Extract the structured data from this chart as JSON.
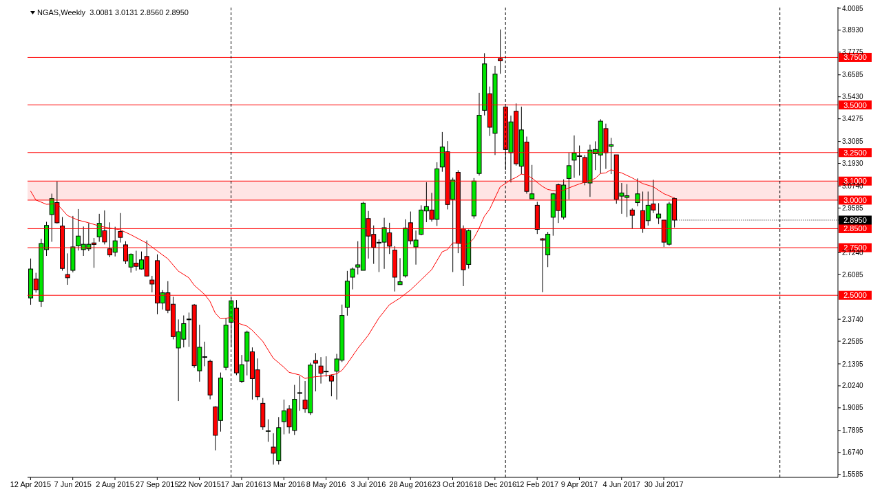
{
  "chart_data": {
    "type": "candlestick",
    "title": "NGAS,Weekly  3.0081 3.0131 2.8560 2.8950",
    "x": [
      "2015-04-12",
      "2015-04-19",
      "2015-04-26",
      "2015-05-03",
      "2015-05-10",
      "2015-05-17",
      "2015-05-24",
      "2015-05-31",
      "2015-06-07",
      "2015-06-14",
      "2015-06-21",
      "2015-06-28",
      "2015-07-05",
      "2015-07-12",
      "2015-07-19",
      "2015-07-26",
      "2015-08-02",
      "2015-08-09",
      "2015-08-16",
      "2015-08-23",
      "2015-08-30",
      "2015-09-06",
      "2015-09-13",
      "2015-09-20",
      "2015-09-27",
      "2015-10-04",
      "2015-10-11",
      "2015-10-18",
      "2015-10-25",
      "2015-11-01",
      "2015-11-08",
      "2015-11-15",
      "2015-11-22",
      "2015-11-29",
      "2015-12-06",
      "2015-12-13",
      "2015-12-20",
      "2015-12-27",
      "2016-01-03",
      "2016-01-10",
      "2016-01-17",
      "2016-01-24",
      "2016-01-31",
      "2016-02-07",
      "2016-02-14",
      "2016-02-21",
      "2016-02-28",
      "2016-03-06",
      "2016-03-13",
      "2016-03-20",
      "2016-03-27",
      "2016-04-03",
      "2016-04-10",
      "2016-04-17",
      "2016-04-24",
      "2016-05-01",
      "2016-05-08",
      "2016-05-15",
      "2016-05-22",
      "2016-05-29",
      "2016-06-05",
      "2016-06-12",
      "2016-06-19",
      "2016-06-26",
      "2016-07-03",
      "2016-07-10",
      "2016-07-17",
      "2016-07-24",
      "2016-07-31",
      "2016-08-07",
      "2016-08-14",
      "2016-08-21",
      "2016-08-28",
      "2016-09-04",
      "2016-09-11",
      "2016-09-18",
      "2016-09-25",
      "2016-10-02",
      "2016-10-09",
      "2016-10-16",
      "2016-10-23",
      "2016-10-30",
      "2016-11-06",
      "2016-11-13",
      "2016-11-20",
      "2016-11-27",
      "2016-12-04",
      "2016-12-11",
      "2016-12-18",
      "2016-12-25",
      "2017-01-01",
      "2017-01-08",
      "2017-01-15",
      "2017-01-22",
      "2017-01-29",
      "2017-02-05",
      "2017-02-12",
      "2017-02-19",
      "2017-02-26",
      "2017-03-05",
      "2017-03-12",
      "2017-03-19",
      "2017-03-26",
      "2017-04-02",
      "2017-04-09",
      "2017-04-16",
      "2017-04-23",
      "2017-04-30",
      "2017-05-07",
      "2017-05-14",
      "2017-05-21",
      "2017-05-28",
      "2017-06-04",
      "2017-06-11",
      "2017-06-18",
      "2017-06-25",
      "2017-07-02",
      "2017-07-09",
      "2017-07-16",
      "2017-07-23",
      "2017-07-30",
      "2017-08-06",
      "2017-08-13"
    ],
    "ohlc": [
      [
        2.486,
        2.693,
        2.45,
        2.638
      ],
      [
        2.585,
        2.618,
        2.514,
        2.528
      ],
      [
        2.468,
        2.797,
        2.439,
        2.772
      ],
      [
        2.74,
        2.886,
        2.707,
        2.867
      ],
      [
        2.924,
        3.034,
        2.781,
        3.008
      ],
      [
        2.987,
        3.098,
        2.877,
        2.881
      ],
      [
        2.864,
        2.911,
        2.629,
        2.641
      ],
      [
        2.609,
        2.72,
        2.555,
        2.592
      ],
      [
        2.631,
        2.917,
        2.62,
        2.754
      ],
      [
        2.76,
        2.953,
        2.735,
        2.811
      ],
      [
        2.74,
        2.861,
        2.707,
        2.768
      ],
      [
        2.744,
        2.879,
        2.732,
        2.768
      ],
      [
        2.775,
        2.801,
        2.644,
        2.767
      ],
      [
        2.807,
        2.928,
        2.781,
        2.878
      ],
      [
        2.839,
        2.946,
        2.767,
        2.78
      ],
      [
        2.744,
        2.883,
        2.7,
        2.712
      ],
      [
        2.726,
        2.86,
        2.704,
        2.786
      ],
      [
        2.835,
        2.932,
        2.777,
        2.804
      ],
      [
        2.765,
        2.784,
        2.664,
        2.68
      ],
      [
        2.648,
        2.72,
        2.619,
        2.715
      ],
      [
        2.669,
        2.734,
        2.629,
        2.652
      ],
      [
        2.638,
        2.73,
        2.635,
        2.686
      ],
      [
        2.704,
        2.788,
        2.598,
        2.601
      ],
      [
        2.58,
        2.602,
        2.515,
        2.559
      ],
      [
        2.682,
        2.715,
        2.4,
        2.459
      ],
      [
        2.459,
        2.527,
        2.425,
        2.513
      ],
      [
        2.513,
        2.574,
        2.406,
        2.421
      ],
      [
        2.453,
        2.492,
        2.268,
        2.283
      ],
      [
        2.223,
        2.373,
        1.944,
        2.308
      ],
      [
        2.269,
        2.394,
        2.226,
        2.351
      ],
      [
        2.374,
        2.409,
        2.229,
        2.375
      ],
      [
        2.449,
        2.454,
        2.119,
        2.13
      ],
      [
        2.103,
        2.345,
        2.046,
        2.227
      ],
      [
        2.176,
        2.256,
        2.127,
        2.177
      ],
      [
        2.153,
        2.162,
        1.953,
        1.976
      ],
      [
        1.913,
        1.917,
        1.685,
        1.764
      ],
      [
        1.842,
        2.094,
        1.783,
        2.065
      ],
      [
        2.121,
        2.38,
        2.106,
        2.343
      ],
      [
        2.358,
        2.489,
        2.227,
        2.471
      ],
      [
        2.432,
        2.475,
        2.08,
        2.092
      ],
      [
        2.047,
        2.186,
        2.039,
        2.135
      ],
      [
        2.154,
        2.314,
        2.079,
        2.306
      ],
      [
        2.203,
        2.226,
        1.952,
        2.062
      ],
      [
        2.108,
        2.168,
        1.949,
        1.967
      ],
      [
        1.932,
        1.96,
        1.793,
        1.808
      ],
      [
        1.787,
        1.848,
        1.73,
        1.788
      ],
      [
        1.702,
        1.775,
        1.61,
        1.67
      ],
      [
        1.631,
        1.86,
        1.61,
        1.804
      ],
      [
        1.836,
        1.952,
        1.769,
        1.893
      ],
      [
        1.903,
        1.922,
        1.773,
        1.808
      ],
      [
        1.79,
        2.029,
        1.766,
        1.953
      ],
      [
        1.987,
        2.075,
        1.893,
        1.988
      ],
      [
        1.949,
        2.049,
        1.883,
        1.903
      ],
      [
        1.883,
        2.145,
        1.871,
        2.133
      ],
      [
        2.157,
        2.196,
        1.995,
        2.143
      ],
      [
        2.128,
        2.175,
        2.036,
        2.09
      ],
      [
        2.1,
        2.179,
        2.072,
        2.101
      ],
      [
        2.076,
        2.083,
        1.969,
        2.049
      ],
      [
        2.101,
        2.192,
        1.952,
        2.165
      ],
      [
        2.159,
        2.451,
        2.149,
        2.394
      ],
      [
        2.436,
        2.628,
        2.393,
        2.574
      ],
      [
        2.595,
        2.646,
        2.531,
        2.638
      ],
      [
        2.648,
        2.784,
        2.609,
        2.66
      ],
      [
        2.631,
        2.991,
        2.631,
        2.984
      ],
      [
        2.903,
        2.943,
        2.693,
        2.811
      ],
      [
        2.82,
        2.867,
        2.665,
        2.752
      ],
      [
        2.777,
        2.794,
        2.622,
        2.778
      ],
      [
        2.779,
        2.907,
        2.639,
        2.855
      ],
      [
        2.828,
        2.881,
        2.717,
        2.758
      ],
      [
        2.737,
        2.758,
        2.52,
        2.595
      ],
      [
        2.556,
        2.695,
        2.556,
        2.571
      ],
      [
        2.602,
        2.899,
        2.593,
        2.853
      ],
      [
        2.881,
        2.94,
        2.767,
        2.786
      ],
      [
        2.754,
        2.84,
        2.661,
        2.79
      ],
      [
        2.82,
        2.973,
        2.815,
        2.948
      ],
      [
        2.943,
        3.094,
        2.884,
        2.966
      ],
      [
        2.948,
        3.038,
        2.887,
        2.899
      ],
      [
        2.899,
        3.199,
        2.864,
        3.164
      ],
      [
        3.174,
        3.358,
        3.149,
        3.279
      ],
      [
        3.254,
        3.31,
        2.951,
        2.977
      ],
      [
        3.004,
        3.118,
        2.622,
        3.105
      ],
      [
        3.146,
        3.157,
        2.721,
        2.773
      ],
      [
        2.85,
        2.867,
        2.548,
        2.634
      ],
      [
        2.662,
        2.846,
        2.64,
        2.84
      ],
      [
        2.917,
        3.116,
        2.903,
        3.1
      ],
      [
        3.14,
        3.564,
        3.129,
        3.446
      ],
      [
        3.472,
        3.772,
        3.445,
        3.716
      ],
      [
        3.559,
        3.597,
        3.337,
        3.383
      ],
      [
        3.351,
        3.705,
        3.237,
        3.662
      ],
      [
        3.744,
        3.897,
        3.664,
        3.732
      ],
      [
        3.489,
        3.489,
        3.158,
        3.266
      ],
      [
        3.249,
        3.444,
        3.093,
        3.411
      ],
      [
        3.467,
        3.508,
        3.181,
        3.191
      ],
      [
        3.178,
        3.491,
        3.136,
        3.369
      ],
      [
        3.305,
        3.334,
        3.034,
        3.046
      ],
      [
        3.007,
        3.185,
        3.007,
        3.033
      ],
      [
        2.973,
        2.991,
        2.822,
        2.846
      ],
      [
        2.797,
        2.801,
        2.516,
        2.79
      ],
      [
        2.712,
        2.833,
        2.648,
        2.821
      ],
      [
        2.91,
        3.037,
        2.813,
        3.033
      ],
      [
        3.081,
        3.087,
        2.88,
        2.945
      ],
      [
        2.91,
        3.109,
        2.898,
        3.079
      ],
      [
        3.114,
        3.249,
        3.004,
        3.181
      ],
      [
        3.21,
        3.34,
        3.117,
        3.247
      ],
      [
        3.232,
        3.287,
        3.129,
        3.233
      ],
      [
        3.224,
        3.237,
        3.078,
        3.093
      ],
      [
        3.09,
        3.291,
        3.017,
        3.263
      ],
      [
        3.244,
        3.309,
        3.158,
        3.266
      ],
      [
        3.237,
        3.425,
        3.14,
        3.415
      ],
      [
        3.376,
        3.402,
        3.164,
        3.249
      ],
      [
        3.283,
        3.327,
        3.137,
        3.291
      ],
      [
        3.238,
        3.238,
        2.981,
        3.004
      ],
      [
        3.021,
        3.09,
        2.928,
        3.037
      ],
      [
        3.014,
        3.084,
        2.911,
        3.023
      ],
      [
        2.948,
        2.957,
        2.85,
        2.92
      ],
      [
        2.987,
        3.114,
        2.968,
        3.033
      ],
      [
        2.945,
        3.045,
        2.828,
        2.85
      ],
      [
        2.892,
        3.045,
        2.866,
        2.973
      ],
      [
        2.98,
        3.107,
        2.932,
        2.948
      ],
      [
        2.906,
        2.984,
        2.874,
        2.927
      ],
      [
        2.895,
        2.895,
        2.754,
        2.779
      ],
      [
        2.768,
        2.991,
        2.761,
        2.98
      ],
      [
        3.0081,
        3.0131,
        2.856,
        2.895
      ]
    ],
    "series": [
      {
        "type": "line",
        "color": "#ff0000",
        "x": [
          "2015-04-12",
          "2015-04-19",
          "2015-05-03",
          "2015-05-17",
          "2015-05-31",
          "2015-06-14",
          "2015-06-28",
          "2015-07-12",
          "2015-07-26",
          "2015-08-09",
          "2015-08-23",
          "2015-09-13",
          "2015-09-27",
          "2015-10-11",
          "2015-10-25",
          "2015-11-08",
          "2015-11-15",
          "2015-11-29",
          "2015-12-06",
          "2015-12-13",
          "2015-12-20",
          "2016-01-03",
          "2016-01-10",
          "2016-01-24",
          "2016-01-31",
          "2016-02-14",
          "2016-02-28",
          "2016-03-13",
          "2016-03-20",
          "2016-04-03",
          "2016-04-10",
          "2016-04-24",
          "2016-05-08",
          "2016-05-22",
          "2016-05-29",
          "2016-06-05",
          "2016-06-19",
          "2016-07-03",
          "2016-07-17",
          "2016-07-31",
          "2016-08-14",
          "2016-08-28",
          "2016-09-11",
          "2016-09-25",
          "2016-10-09",
          "2016-10-16",
          "2016-10-23",
          "2016-10-30",
          "2016-11-06",
          "2016-11-13",
          "2016-11-20",
          "2016-11-27",
          "2016-12-04",
          "2016-12-11",
          "2016-12-18",
          "2016-12-25",
          "2017-01-01",
          "2017-01-08",
          "2017-01-15",
          "2017-01-22",
          "2017-01-29",
          "2017-02-05",
          "2017-02-12",
          "2017-02-19",
          "2017-02-26",
          "2017-03-12",
          "2017-03-19",
          "2017-03-26",
          "2017-04-09",
          "2017-04-23",
          "2017-04-30",
          "2017-05-07",
          "2017-05-14",
          "2017-05-21",
          "2017-05-28",
          "2017-06-04",
          "2017-06-18",
          "2017-07-02",
          "2017-07-16",
          "2017-07-30",
          "2017-08-13"
        ],
        "values": [
          3.048,
          3.001,
          2.978,
          2.981,
          2.919,
          2.895,
          2.881,
          2.864,
          2.853,
          2.844,
          2.818,
          2.774,
          2.733,
          2.692,
          2.627,
          2.592,
          2.553,
          2.504,
          2.468,
          2.406,
          2.376,
          2.383,
          2.356,
          2.338,
          2.316,
          2.258,
          2.169,
          2.122,
          2.095,
          2.081,
          2.063,
          2.072,
          2.077,
          2.087,
          2.105,
          2.14,
          2.22,
          2.29,
          2.38,
          2.45,
          2.485,
          2.528,
          2.581,
          2.634,
          2.728,
          2.74,
          2.775,
          2.775,
          2.766,
          2.77,
          2.799,
          2.852,
          2.915,
          2.952,
          3.011,
          3.07,
          3.087,
          3.107,
          3.119,
          3.137,
          3.131,
          3.117,
          3.093,
          3.072,
          3.056,
          3.046,
          3.052,
          3.064,
          3.085,
          3.103,
          3.114,
          3.14,
          3.143,
          3.16,
          3.15,
          3.143,
          3.117,
          3.087,
          3.07,
          3.034,
          3.011
        ]
      }
    ],
    "xlim": [
      "2015-04-08",
      "2018-03-18"
    ],
    "xticks": [
      {
        "value": "2015-04-12",
        "label": "12 Apr 2015"
      },
      {
        "value": "2015-06-07",
        "label": "7 Jun 2015"
      },
      {
        "value": "2015-08-02",
        "label": "2 Aug 2015"
      },
      {
        "value": "2015-09-27",
        "label": "27 Sep 2015"
      },
      {
        "value": "2015-11-22",
        "label": "22 Nov 2015"
      },
      {
        "value": "2016-01-17",
        "label": "17 Jan 2016"
      },
      {
        "value": "2016-03-13",
        "label": "13 Mar 2016"
      },
      {
        "value": "2016-05-08",
        "label": "8 May 2016"
      },
      {
        "value": "2016-07-03",
        "label": "3 Jul 2016"
      },
      {
        "value": "2016-08-28",
        "label": "28 Aug 2016"
      },
      {
        "value": "2016-10-23",
        "label": "23 Oct 2016"
      },
      {
        "value": "2016-12-18",
        "label": "18 Dec 2016"
      },
      {
        "value": "2017-02-12",
        "label": "12 Feb 2017"
      },
      {
        "value": "2017-04-09",
        "label": "9 Apr 2017"
      },
      {
        "value": "2017-06-04",
        "label": "4 Jun 2017"
      },
      {
        "value": "2017-07-30",
        "label": "30 Jul 2017"
      }
    ],
    "ylim": [
      1.543,
      4.0155
    ],
    "yticks": [
      4.0085,
      {
        "value": 3.893,
        "label": "3.8930"
      },
      3.7775,
      3.6585,
      {
        "value": 3.543,
        "label": "3.5430"
      },
      3.4275,
      3.3085,
      {
        "value": 3.193,
        "label": "3.1930"
      },
      {
        "value": 3.074,
        "label": "3.0740"
      },
      2.9585,
      {
        "value": 2.724,
        "label": "2.7240"
      },
      2.6085,
      {
        "value": 2.374,
        "label": "2.3740"
      },
      2.2585,
      2.1395,
      {
        "value": 2.024,
        "label": "2.0240"
      },
      1.9085,
      1.7895,
      {
        "value": 1.674,
        "label": "1.6740"
      },
      1.5585
    ],
    "ref_lines": [
      {
        "axis": "y",
        "value": 3.75,
        "label": "3.7500",
        "color": "#ff0000"
      },
      {
        "axis": "y",
        "value": 3.5,
        "label": "3.5000",
        "color": "#ff0000"
      },
      {
        "axis": "y",
        "value": 3.25,
        "label": "3.2500",
        "color": "#ff0000"
      },
      {
        "axis": "y",
        "value": 3.1,
        "label": "3.1000",
        "color": "#ff0000"
      },
      {
        "axis": "y",
        "value": 3.0,
        "label": "3.0000",
        "color": "#ff0000"
      },
      {
        "axis": "y",
        "value": 2.85,
        "label": "2.8500",
        "color": "#ff0000"
      },
      {
        "axis": "y",
        "value": 2.75,
        "label": "2.7500",
        "color": "#ff0000"
      },
      {
        "axis": "y",
        "value": 2.5,
        "label": "2.5000",
        "color": "#ff0000"
      },
      {
        "axis": "x",
        "value": "2016-01-03",
        "color": "#000000",
        "line_style": "dashed"
      },
      {
        "axis": "x",
        "value": "2017-01-01",
        "color": "#000000",
        "line_style": "dashed"
      },
      {
        "axis": "x",
        "value": "2017-12-31",
        "color": "#000000",
        "line_style": "dashed"
      }
    ],
    "bands": [
      {
        "axis": "y",
        "from": 3.0,
        "to": 3.1,
        "color": "#ffe4e4"
      }
    ],
    "annotations": [
      {
        "text": "2.8950",
        "x": "2017-08-13",
        "y": 2.895
      }
    ],
    "tick_labels": true
  }
}
